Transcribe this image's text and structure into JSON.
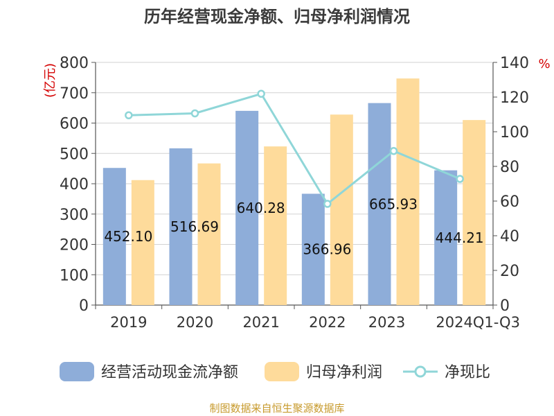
{
  "chart_data": {
    "type": "bar",
    "title": "历年经营现金净额、归母净利润情况",
    "categories": [
      "2019",
      "2020",
      "2021",
      "2022",
      "2023",
      "2024Q1-Q3"
    ],
    "series": [
      {
        "name": "经营活动现金流净额",
        "type": "bar",
        "axis": "left",
        "color": "#8eadd9",
        "values": [
          452.1,
          516.69,
          640.28,
          366.96,
          665.93,
          444.21
        ]
      },
      {
        "name": "归母净利润",
        "type": "bar",
        "axis": "left",
        "color": "#fedb9b",
        "values": [
          412,
          467,
          523,
          628,
          747,
          610
        ]
      },
      {
        "name": "净现比",
        "type": "line",
        "axis": "right",
        "color": "#8fd6d8",
        "values": [
          109.5,
          110.6,
          121.9,
          58.4,
          88.9,
          72.8
        ]
      }
    ],
    "data_labels": [
      "452.10",
      "516.69",
      "640.28",
      "366.96",
      "665.93",
      "444.21"
    ],
    "y_left": {
      "unit": "(亿元)",
      "ylim": [
        0,
        800
      ],
      "ticks": [
        0,
        100,
        200,
        300,
        400,
        500,
        600,
        700,
        800
      ]
    },
    "y_right": {
      "unit": "%",
      "ylim": [
        0,
        140
      ],
      "ticks": [
        0,
        20,
        40,
        60,
        80,
        100,
        120,
        140
      ]
    },
    "grid": true,
    "legend_position": "bottom"
  },
  "source": "制图数据来自恒生聚源数据库"
}
